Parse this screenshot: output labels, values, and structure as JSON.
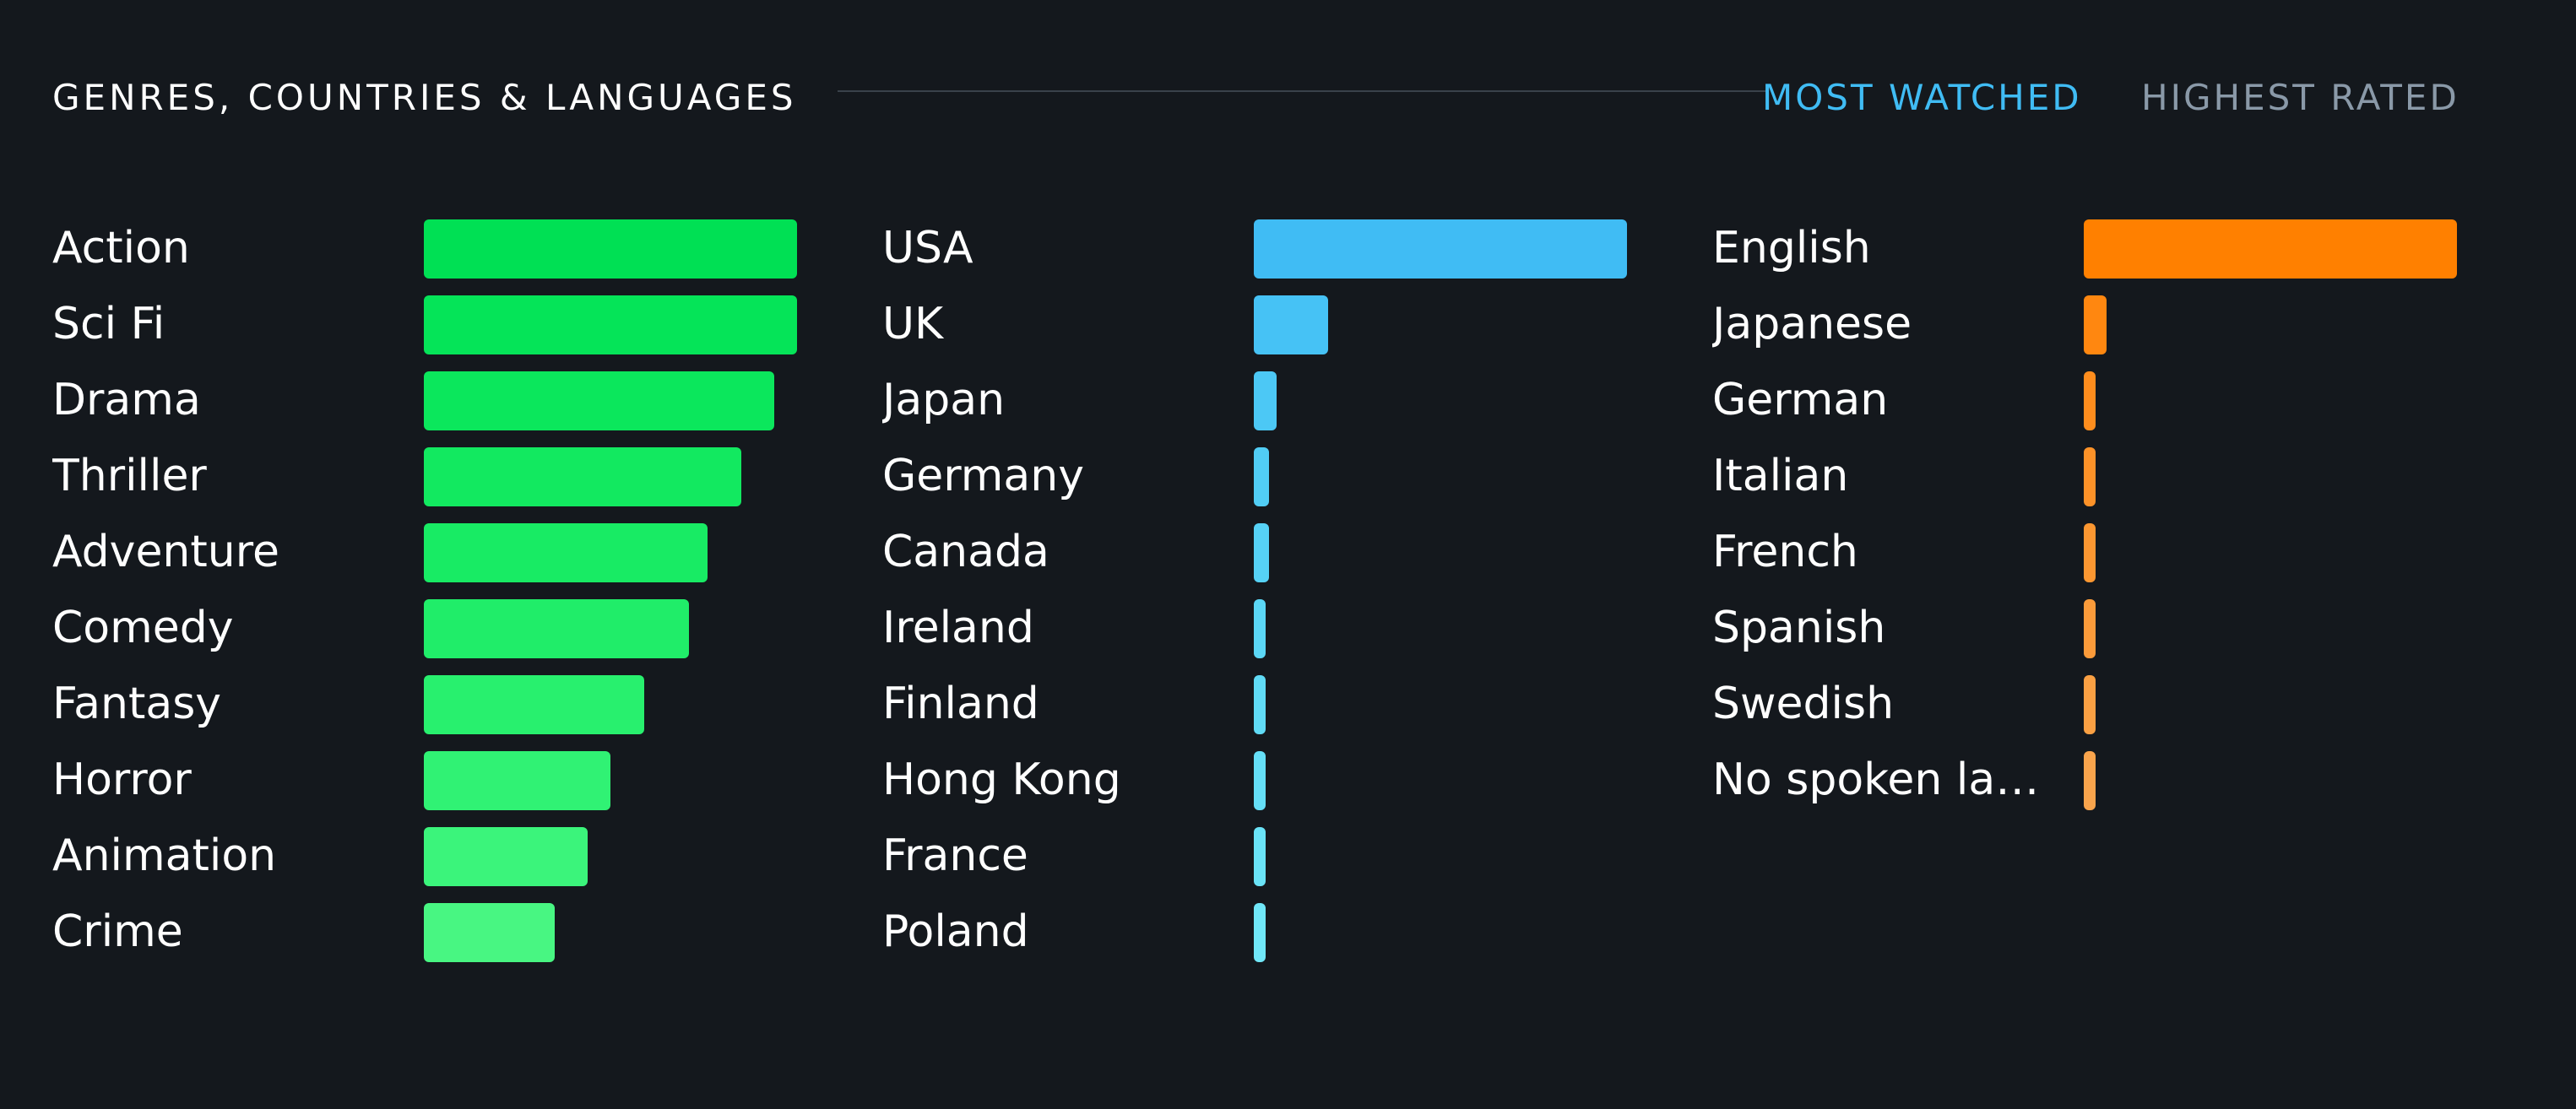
{
  "header": {
    "title": "GENRES, COUNTRIES & LANGUAGES",
    "tabs": [
      {
        "label": "MOST WATCHED",
        "active": true,
        "color": "#40bcf4"
      },
      {
        "label": "HIGHEST RATED",
        "active": false,
        "color": "#8a99a8"
      }
    ]
  },
  "genres": {
    "colors": [
      "#00e054",
      "#05e458",
      "#0be75c",
      "#12e960",
      "#18eb64",
      "#20ed69",
      "#28f06e",
      "#30f274",
      "#3bf47b",
      "#48f682"
    ],
    "items": [
      {
        "label": "Action",
        "value": 100
      },
      {
        "label": "Sci Fi",
        "value": 100
      },
      {
        "label": "Drama",
        "value": 94
      },
      {
        "label": "Thriller",
        "value": 85
      },
      {
        "label": "Adventure",
        "value": 76
      },
      {
        "label": "Comedy",
        "value": 71
      },
      {
        "label": "Fantasy",
        "value": 59
      },
      {
        "label": "Horror",
        "value": 50
      },
      {
        "label": "Animation",
        "value": 44
      },
      {
        "label": "Crime",
        "value": 35
      }
    ]
  },
  "countries": {
    "colors": [
      "#40bcf4",
      "#46c2f5",
      "#4cc8f5",
      "#51cdf5",
      "#56d2f6",
      "#5bd7f6",
      "#60dbf6",
      "#65dff7",
      "#6ae3f7",
      "#70e7f8"
    ],
    "items": [
      {
        "label": "USA",
        "value": 100
      },
      {
        "label": "UK",
        "value": 20
      },
      {
        "label": "Japan",
        "value": 6
      },
      {
        "label": "Germany",
        "value": 4
      },
      {
        "label": "Canada",
        "value": 4
      },
      {
        "label": "Ireland",
        "value": 3
      },
      {
        "label": "Finland",
        "value": 3
      },
      {
        "label": "Hong Kong",
        "value": 3
      },
      {
        "label": "France",
        "value": 3
      },
      {
        "label": "Poland",
        "value": 3
      }
    ]
  },
  "languages": {
    "colors": [
      "#ff8000",
      "#ff8710",
      "#fe8d1d",
      "#fd9228",
      "#fc9731",
      "#fb9b3a",
      "#faa043",
      "#f9a44c"
    ],
    "items": [
      {
        "label": "English",
        "value": 100
      },
      {
        "label": "Japanese",
        "value": 6
      },
      {
        "label": "German",
        "value": 3
      },
      {
        "label": "Italian",
        "value": 3
      },
      {
        "label": "French",
        "value": 3
      },
      {
        "label": "Spanish",
        "value": 3
      },
      {
        "label": "Swedish",
        "value": 3
      },
      {
        "label": "No spoken lan...",
        "value": 3
      }
    ]
  }
}
